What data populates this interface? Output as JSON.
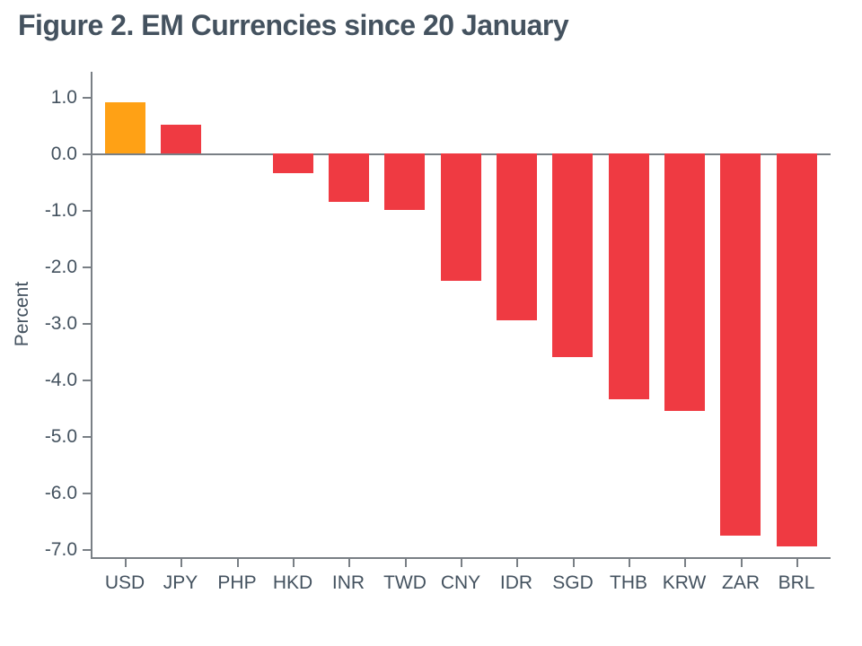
{
  "title": "Figure 2. EM Currencies since 20 January",
  "chart_data": {
    "type": "bar",
    "title": "Figure 2. EM Currencies since 20 January",
    "categories": [
      "USD",
      "JPY",
      "PHP",
      "HKD",
      "INR",
      "TWD",
      "CNY",
      "IDR",
      "SGD",
      "THB",
      "KRW",
      "ZAR",
      "BRL"
    ],
    "values": [
      0.9,
      0.5,
      0.0,
      -0.35,
      -0.85,
      -1.0,
      -2.25,
      -2.95,
      -3.6,
      -4.35,
      -4.55,
      -6.75,
      -6.95
    ],
    "xlabel": "",
    "ylabel": "Percent",
    "yticks": [
      1.0,
      0.0,
      -1.0,
      -2.0,
      -3.0,
      -4.0,
      -5.0,
      -6.0,
      -7.0
    ],
    "ylim": [
      1.44,
      -7.14
    ],
    "grid": false,
    "legend": false,
    "bar_colors": [
      "#ffa115",
      "#ef3a42",
      "#ef3a42",
      "#ef3a42",
      "#ef3a42",
      "#ef3a42",
      "#ef3a42",
      "#ef3a42",
      "#ef3a42",
      "#ef3a42",
      "#ef3a42",
      "#ef3a42",
      "#ef3a42"
    ]
  },
  "colors": {
    "background": "#ffffff",
    "title_text": "#44525f",
    "tick_text": "#44525f",
    "axis_line": "#797f85",
    "highlight_bar": "#ffa115",
    "default_bar": "#ef3a42"
  }
}
